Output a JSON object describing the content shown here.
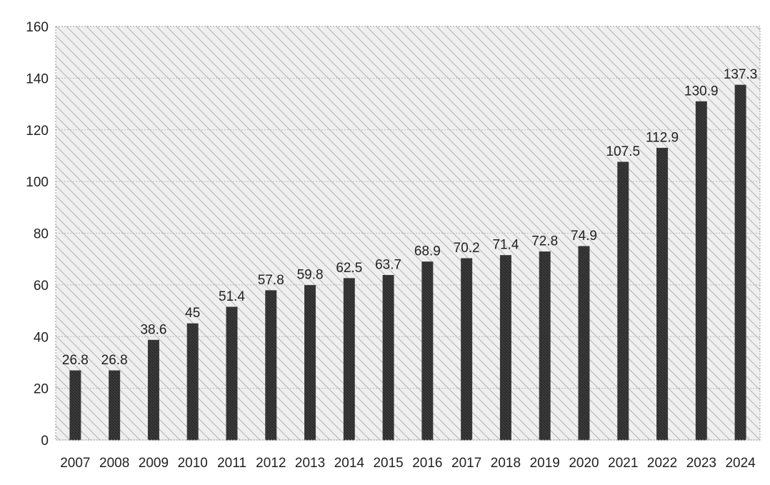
{
  "chart_data": {
    "type": "bar",
    "title": "",
    "xlabel": "",
    "ylabel": "",
    "categories": [
      "2007",
      "2008",
      "2009",
      "2010",
      "2011",
      "2012",
      "2013",
      "2014",
      "2015",
      "2016",
      "2017",
      "2018",
      "2019",
      "2020",
      "2021",
      "2022",
      "2023",
      "2024"
    ],
    "values": [
      26.8,
      26.8,
      38.6,
      45,
      51.4,
      57.8,
      59.8,
      62.5,
      63.7,
      68.9,
      70.2,
      71.4,
      72.8,
      74.9,
      107.5,
      112.9,
      130.9,
      137.3
    ],
    "value_labels": [
      "26.8",
      "26.8",
      "38.6",
      "45",
      "51.4",
      "57.8",
      "59.8",
      "62.5",
      "63.7",
      "68.9",
      "70.2",
      "71.4",
      "72.8",
      "74.9",
      "107.5",
      "112.9",
      "130.9",
      "137.3"
    ],
    "ylim": [
      0,
      160
    ],
    "y_ticks": [
      0,
      20,
      40,
      60,
      80,
      100,
      120,
      140,
      160
    ],
    "y_tick_labels": [
      "0",
      "20",
      "40",
      "60",
      "80",
      "100",
      "120",
      "140",
      "160"
    ],
    "grid": true,
    "legend": "none",
    "colors": {
      "bar": "#3a3a3a",
      "plot_background": "#ececec",
      "gridline": "#b8b8b8"
    }
  }
}
